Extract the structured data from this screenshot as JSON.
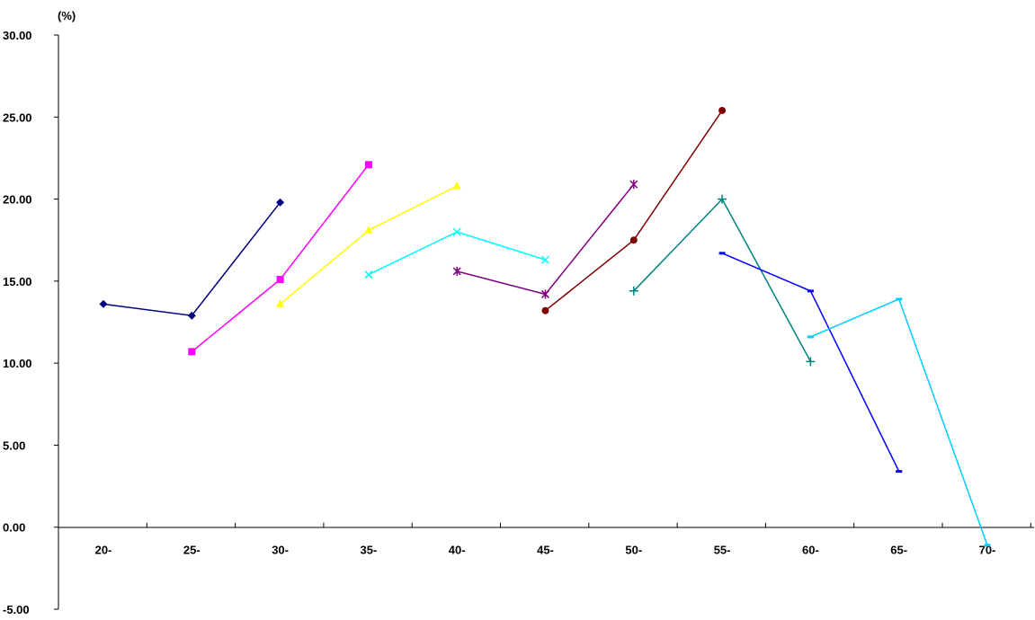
{
  "chart_data": {
    "type": "line",
    "unit_label": "(%)",
    "categories": [
      "20-",
      "25-",
      "30-",
      "35-",
      "40-",
      "45-",
      "50-",
      "55-",
      "60-",
      "65-",
      "70-"
    ],
    "ylim": [
      -5,
      30
    ],
    "y_ticks": [
      "30.00",
      "25.00",
      "20.00",
      "15.00",
      "10.00",
      "5.00",
      "0.00",
      "-5.00"
    ],
    "grid": false,
    "series": [
      {
        "color": "#000080",
        "marker": "diamond",
        "values": [
          13.6,
          12.9,
          19.8,
          null,
          null,
          null,
          null,
          null,
          null,
          null,
          null
        ]
      },
      {
        "color": "#ff00ff",
        "marker": "square",
        "values": [
          null,
          10.7,
          15.1,
          22.1,
          null,
          null,
          null,
          null,
          null,
          null,
          null
        ]
      },
      {
        "color": "#ffff00",
        "marker": "triangle",
        "values": [
          null,
          null,
          13.6,
          18.1,
          20.8,
          null,
          null,
          null,
          null,
          null,
          null
        ]
      },
      {
        "color": "#00ffff",
        "marker": "x",
        "values": [
          null,
          null,
          null,
          15.4,
          18.0,
          16.3,
          null,
          null,
          null,
          null,
          null
        ]
      },
      {
        "color": "#800080",
        "marker": "star",
        "values": [
          null,
          null,
          null,
          null,
          15.6,
          14.2,
          20.9,
          null,
          null,
          null,
          null
        ]
      },
      {
        "color": "#800000",
        "marker": "circle",
        "values": [
          null,
          null,
          null,
          null,
          null,
          13.2,
          17.5,
          25.4,
          null,
          null,
          null
        ]
      },
      {
        "color": "#008080",
        "marker": "plus",
        "values": [
          null,
          null,
          null,
          null,
          null,
          null,
          14.4,
          20.0,
          10.1,
          null,
          null
        ]
      },
      {
        "color": "#0000ff",
        "marker": "dash",
        "values": [
          null,
          null,
          null,
          null,
          null,
          null,
          null,
          16.7,
          14.4,
          3.4,
          null
        ]
      },
      {
        "color": "#00ccff",
        "marker": "dash",
        "values": [
          null,
          null,
          null,
          null,
          null,
          null,
          null,
          null,
          11.6,
          13.9,
          -1.1
        ]
      }
    ]
  }
}
